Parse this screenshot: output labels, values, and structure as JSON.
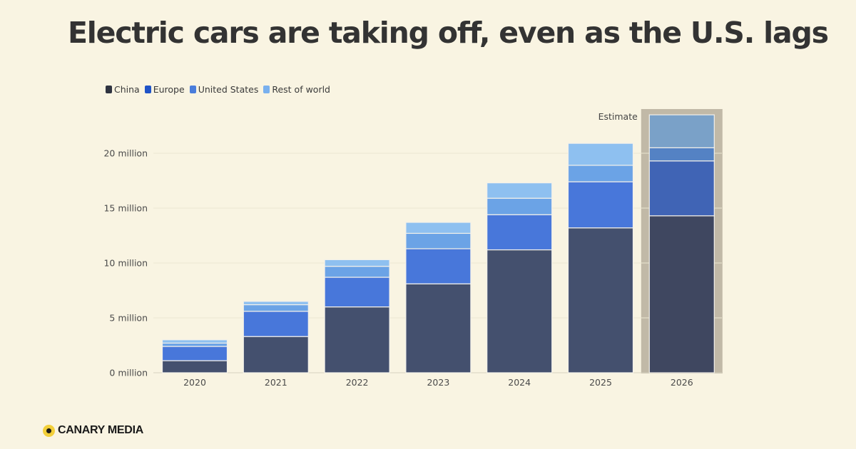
{
  "headline": "Electric cars are taking off, even as the U.S. lags",
  "brand": "CANARY MEDIA",
  "chart_data": {
    "type": "bar",
    "stacked": true,
    "title": "Electric cars are taking off, even as the U.S. lags",
    "xlabel": "",
    "ylabel": "",
    "categories": [
      "2020",
      "2021",
      "2022",
      "2023",
      "2024",
      "2025",
      "2026"
    ],
    "series": [
      {
        "name": "China",
        "color": "#44506e",
        "values": [
          1.1,
          3.3,
          6.0,
          8.1,
          11.2,
          13.2,
          14.3
        ]
      },
      {
        "name": "Europe",
        "color": "#4877da",
        "values": [
          1.3,
          2.3,
          2.7,
          3.2,
          3.2,
          4.2,
          5.0
        ]
      },
      {
        "name": "United States",
        "color": "#6ba3e6",
        "values": [
          0.3,
          0.6,
          1.0,
          1.4,
          1.5,
          1.5,
          1.2
        ]
      },
      {
        "name": "Rest of world",
        "color": "#8ec0f0",
        "values": [
          0.3,
          0.3,
          0.6,
          1.0,
          1.4,
          2.0,
          3.0
        ]
      }
    ],
    "estimate_series_colors": [
      "#3f4760",
      "#4064b5",
      "#5482c4",
      "#7aa1c8"
    ],
    "ylim": [
      0,
      23.5
    ],
    "yticks": [
      0,
      5,
      10,
      15,
      20
    ],
    "ytick_labels": [
      "0 million",
      "5 million",
      "10 million",
      "15 million",
      "20 million"
    ],
    "estimate_category": "2026",
    "estimate_label": "Estimate",
    "legend_position": "top-left",
    "grid": true
  }
}
